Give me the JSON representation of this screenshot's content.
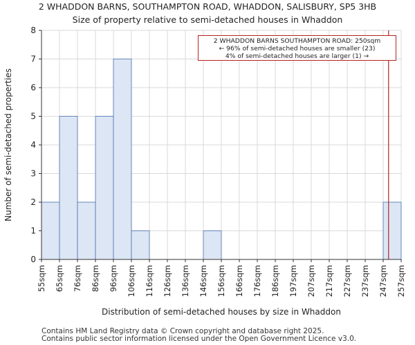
{
  "title": {
    "line1": "2 WHADDON BARNS, SOUTHAMPTON ROAD, WHADDON, SALISBURY, SP5 3HB",
    "line2": "Size of property relative to semi-detached houses in Whaddon"
  },
  "footer": {
    "line1": "Contains HM Land Registry data © Crown copyright and database right 2025.",
    "line2": "Contains public sector information licensed under the Open Government Licence v3.0."
  },
  "colors": {
    "bar_fill": "#dce6f4",
    "bar_edge": "#4a6fb0",
    "marker": "#b22222",
    "grid": "#d9d9d9",
    "axis": "#333333"
  },
  "chart_data": {
    "type": "bar",
    "title": "Size of property relative to semi-detached houses in Whaddon",
    "xlabel": "Distribution of semi-detached houses by size in Whaddon",
    "ylabel": "Number of semi-detached properties",
    "ylim": [
      0,
      8
    ],
    "yticks": [
      0,
      1,
      2,
      3,
      4,
      5,
      6,
      7,
      8
    ],
    "grid": true,
    "bin_edge_labels": [
      "55sqm",
      "65sqm",
      "76sqm",
      "86sqm",
      "96sqm",
      "106sqm",
      "116sqm",
      "126sqm",
      "136sqm",
      "146sqm",
      "156sqm",
      "166sqm",
      "176sqm",
      "186sqm",
      "197sqm",
      "207sqm",
      "217sqm",
      "227sqm",
      "237sqm",
      "247sqm",
      "257sqm"
    ],
    "values": [
      2,
      5,
      2,
      5,
      7,
      1,
      0,
      0,
      0,
      1,
      0,
      0,
      0,
      0,
      0,
      0,
      0,
      0,
      0,
      2
    ],
    "marker": {
      "value": 250,
      "unit": "sqm",
      "label": "2 WHADDON BARNS SOUTHAMPTON ROAD: 250sqm",
      "line2": "← 96% of semi-detached houses are smaller (23)",
      "line3": "4% of semi-detached houses are larger (1) →"
    }
  }
}
